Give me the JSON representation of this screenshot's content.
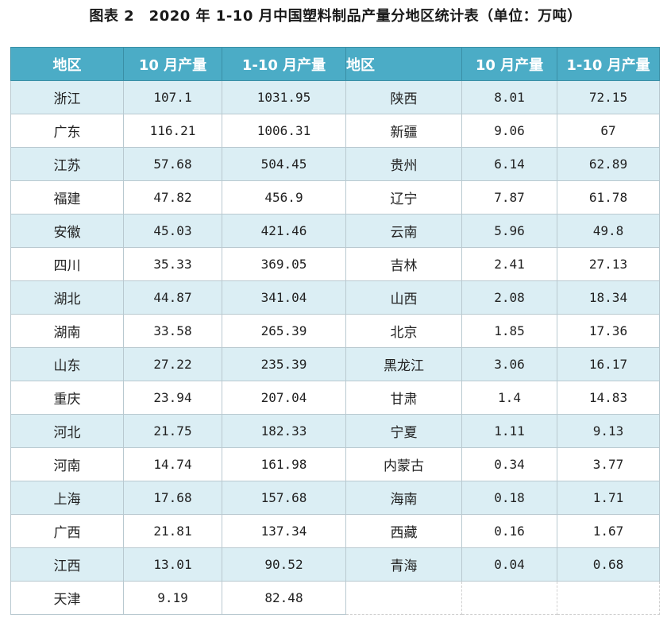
{
  "title": "图表 2　2020 年 1-10 月中国塑料制品产量分地区统计表（单位：万吨）",
  "headers": [
    "地区",
    "10 月产量",
    "1-10 月产量",
    "地区",
    "10 月产量",
    "1-10 月产量"
  ],
  "left": [
    {
      "region": "浙江",
      "oct": "107.1",
      "ytd": "1031.95"
    },
    {
      "region": "广东",
      "oct": "116.21",
      "ytd": "1006.31"
    },
    {
      "region": "江苏",
      "oct": "57.68",
      "ytd": "504.45"
    },
    {
      "region": "福建",
      "oct": "47.82",
      "ytd": "456.9"
    },
    {
      "region": "安徽",
      "oct": "45.03",
      "ytd": "421.46"
    },
    {
      "region": "四川",
      "oct": "35.33",
      "ytd": "369.05"
    },
    {
      "region": "湖北",
      "oct": "44.87",
      "ytd": "341.04"
    },
    {
      "region": "湖南",
      "oct": "33.58",
      "ytd": "265.39"
    },
    {
      "region": "山东",
      "oct": "27.22",
      "ytd": "235.39"
    },
    {
      "region": "重庆",
      "oct": "23.94",
      "ytd": "207.04"
    },
    {
      "region": "河北",
      "oct": "21.75",
      "ytd": "182.33"
    },
    {
      "region": "河南",
      "oct": "14.74",
      "ytd": "161.98"
    },
    {
      "region": "上海",
      "oct": "17.68",
      "ytd": "157.68"
    },
    {
      "region": "广西",
      "oct": "21.81",
      "ytd": "137.34"
    },
    {
      "region": "江西",
      "oct": "13.01",
      "ytd": "90.52"
    },
    {
      "region": "天津",
      "oct": "9.19",
      "ytd": "82.48"
    }
  ],
  "right": [
    {
      "region": "陕西",
      "oct": "8.01",
      "ytd": "72.15"
    },
    {
      "region": "新疆",
      "oct": "9.06",
      "ytd": "67"
    },
    {
      "region": "贵州",
      "oct": "6.14",
      "ytd": "62.89"
    },
    {
      "region": "辽宁",
      "oct": "7.87",
      "ytd": "61.78"
    },
    {
      "region": "云南",
      "oct": "5.96",
      "ytd": "49.8"
    },
    {
      "region": "吉林",
      "oct": "2.41",
      "ytd": "27.13"
    },
    {
      "region": "山西",
      "oct": "2.08",
      "ytd": "18.34"
    },
    {
      "region": "北京",
      "oct": "1.85",
      "ytd": "17.36"
    },
    {
      "region": "黑龙江",
      "oct": "3.06",
      "ytd": "16.17"
    },
    {
      "region": "甘肃",
      "oct": "1.4",
      "ytd": "14.83"
    },
    {
      "region": "宁夏",
      "oct": "1.11",
      "ytd": "9.13"
    },
    {
      "region": "内蒙古",
      "oct": "0.34",
      "ytd": "3.77"
    },
    {
      "region": "海南",
      "oct": "0.18",
      "ytd": "1.71"
    },
    {
      "region": "西藏",
      "oct": "0.16",
      "ytd": "1.67"
    },
    {
      "region": "青海",
      "oct": "0.04",
      "ytd": "0.68"
    }
  ],
  "colors": {
    "header_bg": "#4bacc6",
    "band_bg": "#dbeef4",
    "header_text": "#ffffff"
  }
}
